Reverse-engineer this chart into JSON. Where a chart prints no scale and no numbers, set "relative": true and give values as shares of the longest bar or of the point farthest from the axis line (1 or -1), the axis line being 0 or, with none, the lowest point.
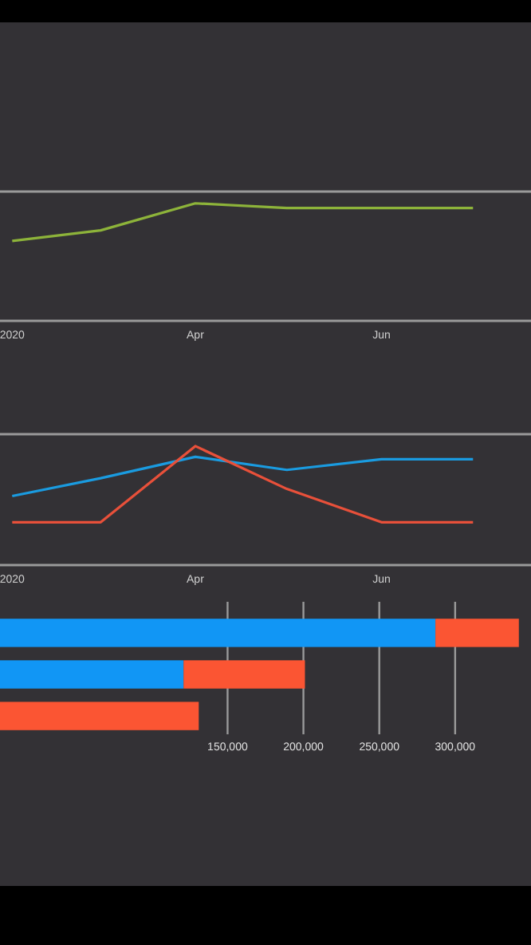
{
  "chart_data": [
    {
      "type": "line",
      "relative": true,
      "marker": "none",
      "x": [
        "2020-02-01",
        "2020-03-01",
        "2020-04-01",
        "2020-05-01",
        "2020-06-01",
        "2020-07-01"
      ],
      "xlim": [
        "2020-01-28",
        "2020-07-20"
      ],
      "xticks": [
        {
          "value": "2020-02-01",
          "label": "2020"
        },
        {
          "value": "2020-04-01",
          "label": "Apr"
        },
        {
          "value": "2020-06-01",
          "label": "Jun"
        }
      ],
      "series": [
        {
          "color": "#8db33a",
          "values": [
            0.68,
            0.77,
            1,
            0.96,
            0.96,
            0.96
          ]
        }
      ]
    },
    {
      "type": "line",
      "relative": true,
      "marker": "none",
      "x": [
        "2020-02-01",
        "2020-03-01",
        "2020-04-01",
        "2020-05-01",
        "2020-06-01",
        "2020-07-01"
      ],
      "xlim": [
        "2020-01-28",
        "2020-07-20"
      ],
      "xticks": [
        {
          "value": "2020-02-01",
          "label": "2020"
        },
        {
          "value": "2020-04-01",
          "label": "Apr"
        },
        {
          "value": "2020-06-01",
          "label": "Jun"
        }
      ],
      "series": [
        {
          "color": "#1a9be0",
          "values": [
            0.58,
            0.73,
            0.91,
            0.8,
            0.89,
            0.89
          ]
        },
        {
          "color": "#e8503a",
          "values": [
            0.36,
            0.36,
            1,
            0.64,
            0.36,
            0.36
          ]
        }
      ]
    },
    {
      "type": "bar",
      "orientation": "horizontal",
      "stacked": true,
      "grid": "x",
      "categories": [
        null,
        null,
        null
      ],
      "xlim": [
        0,
        350000
      ],
      "xticks": [
        {
          "value": 150000,
          "label": "150,000"
        },
        {
          "value": 200000,
          "label": "200,000"
        },
        {
          "value": 250000,
          "label": "250,000"
        },
        {
          "value": 300000,
          "label": "300,000"
        }
      ],
      "series": [
        {
          "color": "#1196f5",
          "values": [
            287000,
            121000,
            null
          ]
        },
        {
          "color": "#fb5533",
          "values": [
            55000,
            80000,
            131000
          ]
        }
      ]
    }
  ]
}
